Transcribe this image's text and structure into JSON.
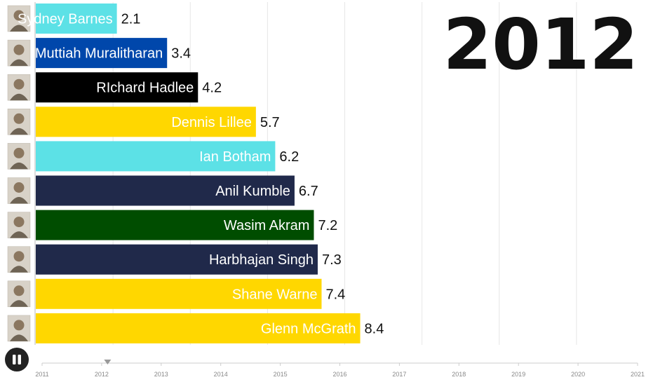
{
  "chart_data": {
    "type": "bar",
    "orientation": "horizontal",
    "current_year": "2012",
    "xlim": [
      0,
      15.6
    ],
    "categories": [
      "Sydney Barnes",
      "Muttiah Muralitharan",
      "RIchard Hadlee",
      "Dennis Lillee",
      "Ian Botham",
      "Anil Kumble",
      "Wasim Akram",
      "Harbhajan Singh",
      "Shane Warne",
      "Glenn McGrath"
    ],
    "values": [
      2.1,
      3.4,
      4.2,
      5.7,
      6.2,
      6.7,
      7.2,
      7.3,
      7.4,
      8.4
    ],
    "value_labels": [
      "2.1",
      "3.4",
      "4.2",
      "5.7",
      "6.2",
      "6.7",
      "7.2",
      "7.3",
      "7.4",
      "8.4"
    ],
    "colors": [
      "#5ce1e6",
      "#0047ab",
      "#000000",
      "#ffd700",
      "#5ce1e6",
      "#20294a",
      "#004d00",
      "#20294a",
      "#ffd700",
      "#ffd700"
    ],
    "timeline": {
      "ticks": [
        "2011",
        "2012",
        "2013",
        "2014",
        "2015",
        "2016",
        "2017",
        "2018",
        "2019",
        "2020",
        "2021"
      ],
      "current": 2012.1
    },
    "grid": true
  },
  "icons": {
    "avatar": "player-avatar",
    "play_button": "pause-icon"
  }
}
